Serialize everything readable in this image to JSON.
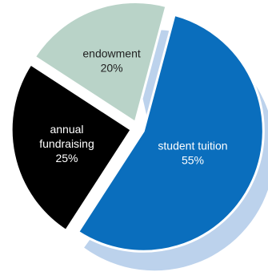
{
  "chart_data": {
    "type": "pie",
    "title": "",
    "slices": [
      {
        "label": "student tuition",
        "value": 55,
        "value_label": "55%",
        "color": "#0a6ebd",
        "text_color": "#ffffff"
      },
      {
        "label": "annual fundraising",
        "value": 25,
        "value_label": "25%",
        "color": "#000000",
        "text_color": "#ffffff"
      },
      {
        "label": "endowment",
        "value": 20,
        "value_label": "20%",
        "color": "#b9d3c8",
        "text_color": "#222222"
      }
    ],
    "shadow_color": "#bcd2ec",
    "legend": "none"
  }
}
